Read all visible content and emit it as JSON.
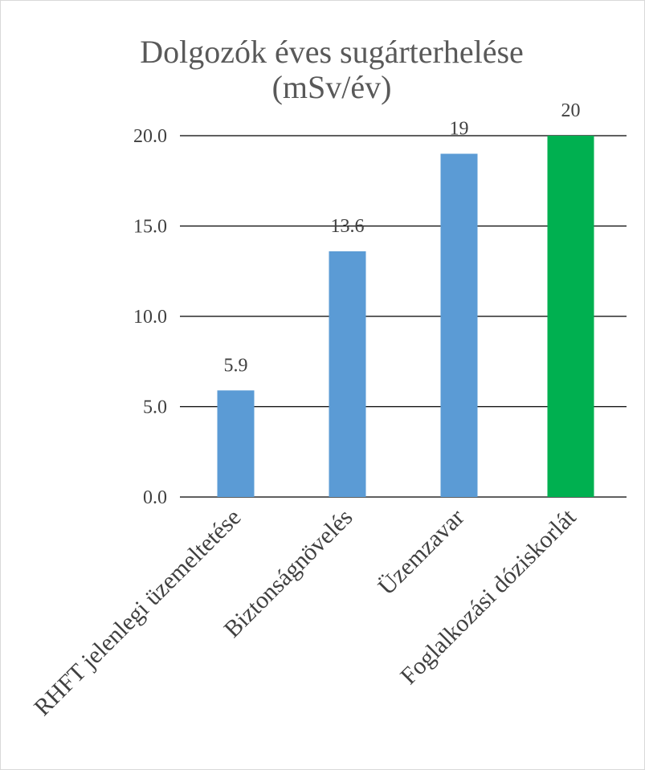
{
  "chart_data": {
    "type": "bar",
    "title_line1": "Dolgozók éves sugárterhelése",
    "title_line2": "(mSv/év)",
    "categories": [
      "RHFT jelenlegi üzemeltetése",
      "Biztonságnövelés",
      "Üzemzavar",
      "Foglalkozási dóziskorlát"
    ],
    "values": [
      5.9,
      13.6,
      19,
      20
    ],
    "data_labels": [
      "5.9",
      "13.6",
      "19",
      "20"
    ],
    "bar_colors": [
      "#5b9bd5",
      "#5b9bd5",
      "#5b9bd5",
      "#00b050"
    ],
    "ylim": [
      0,
      20
    ],
    "yticks": [
      0,
      5,
      10,
      15,
      20
    ],
    "ytick_labels": [
      "0.0",
      "5.0",
      "10.0",
      "15.0",
      "20.0"
    ],
    "grid": true,
    "legend": "none"
  }
}
